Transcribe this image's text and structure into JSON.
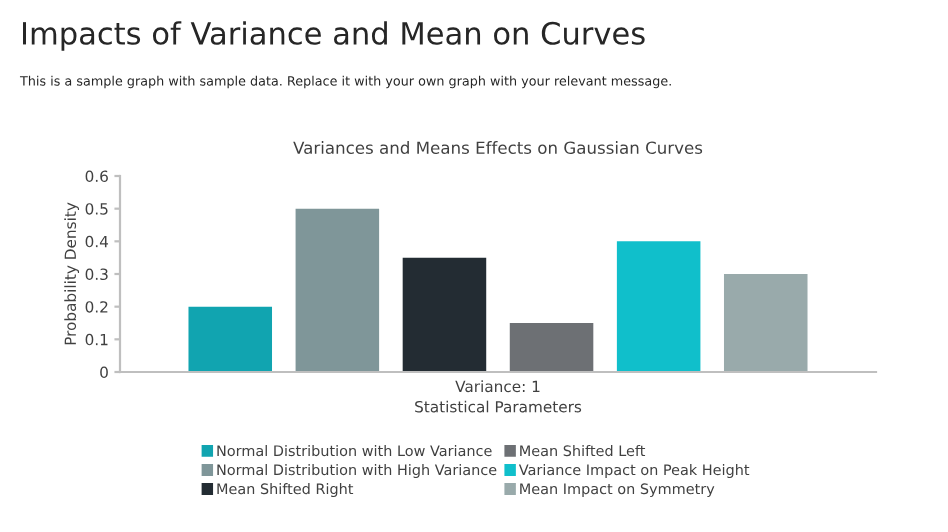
{
  "chart_data": {
    "type": "bar",
    "title": "Variances and Means Effects on Gaussian Curves",
    "annotations": [
      "Impacts of Variance and Mean on Curves",
      "This is a sample graph with sample data. Replace it with your own graph with your relevant message."
    ],
    "xlabel": "Statistical Parameters",
    "ylabel": "Probability Density",
    "categories": [
      "Variance: 1"
    ],
    "series": [
      {
        "name": "Normal Distribution with Low Variance",
        "color": "#11a4b0",
        "values": [
          0.2
        ]
      },
      {
        "name": "Normal Distribution with High Variance",
        "color": "#7f9699",
        "values": [
          0.5
        ]
      },
      {
        "name": "Mean Shifted Right",
        "color": "#232c33",
        "values": [
          0.35
        ]
      },
      {
        "name": "Mean Shifted Left",
        "color": "#6d7074",
        "values": [
          0.15
        ]
      },
      {
        "name": "Variance Impact on Peak Height",
        "color": "#10bfcb",
        "values": [
          0.4
        ]
      },
      {
        "name": "Mean Impact on Symmetry",
        "color": "#99aaab",
        "values": [
          0.3
        ]
      }
    ],
    "ylim": [
      0,
      0.6
    ],
    "yticks": [
      0,
      0.1,
      0.2,
      0.3,
      0.4,
      0.5,
      0.6
    ],
    "grid": false,
    "legend": "bottom"
  }
}
